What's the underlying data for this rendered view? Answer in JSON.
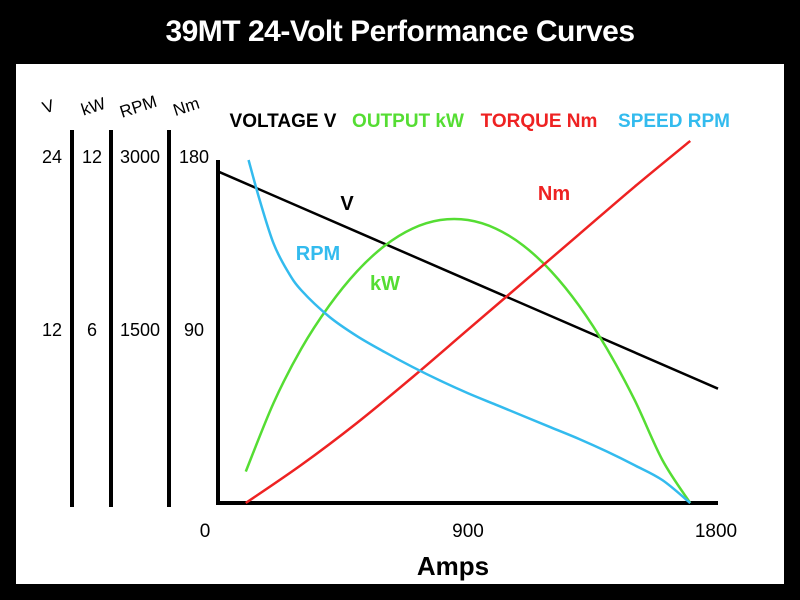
{
  "chart_data": {
    "type": "line",
    "title": "39MT 24-Volt Performance Curves",
    "xlabel": "Amps",
    "xlim": [
      0,
      1800
    ],
    "x_ticks": [
      "0",
      "900",
      "1800"
    ],
    "axis_headers": [
      "V",
      "kW",
      "RPM",
      "Nm"
    ],
    "axis_scales": [
      {
        "unit": "V",
        "ticks": [
          "24",
          "12"
        ]
      },
      {
        "unit": "kW",
        "ticks": [
          "12",
          "6"
        ]
      },
      {
        "unit": "RPM",
        "ticks": [
          "3000",
          "1500"
        ]
      },
      {
        "unit": "Nm",
        "ticks": [
          "180",
          "90"
        ]
      }
    ],
    "legend": [
      "VOLTAGE V",
      "OUTPUT kW",
      "TORQUE Nm",
      "SPEED RPM"
    ],
    "series": [
      {
        "name": "VOLTAGE V",
        "unit": "V",
        "color": "#000000",
        "x": [
          0,
          900,
          1800
        ],
        "values": [
          23.2,
          15.6,
          8.0
        ],
        "label": "V"
      },
      {
        "name": "OUTPUT kW",
        "unit": "kW",
        "color": "#55dd33",
        "x": [
          100,
          200,
          300,
          400,
          500,
          600,
          700,
          800,
          900,
          1000,
          1100,
          1200,
          1300,
          1400,
          1500,
          1600,
          1700
        ],
        "values": [
          1.1,
          3.5,
          5.4,
          6.9,
          8.1,
          9.0,
          9.6,
          9.9,
          9.9,
          9.6,
          9.0,
          8.1,
          6.9,
          5.4,
          3.6,
          1.5,
          0.0
        ],
        "label": "kW"
      },
      {
        "name": "TORQUE Nm",
        "unit": "Nm",
        "color": "#ee2222",
        "x": [
          100,
          300,
          500,
          700,
          900,
          1100,
          1300,
          1500,
          1700
        ],
        "values": [
          0,
          20,
          42,
          66,
          91,
          116,
          141,
          166,
          190
        ],
        "label": "Nm"
      },
      {
        "name": "SPEED RPM",
        "unit": "RPM",
        "color": "#33bbee",
        "x": [
          110,
          150,
          200,
          250,
          300,
          400,
          500,
          600,
          700,
          800,
          900,
          1000,
          1100,
          1200,
          1300,
          1400,
          1500,
          1600,
          1700
        ],
        "values": [
          3000,
          2650,
          2270,
          2030,
          1860,
          1630,
          1460,
          1320,
          1190,
          1070,
          960,
          860,
          760,
          660,
          560,
          450,
          330,
          200,
          0
        ],
        "label": "RPM"
      }
    ]
  }
}
